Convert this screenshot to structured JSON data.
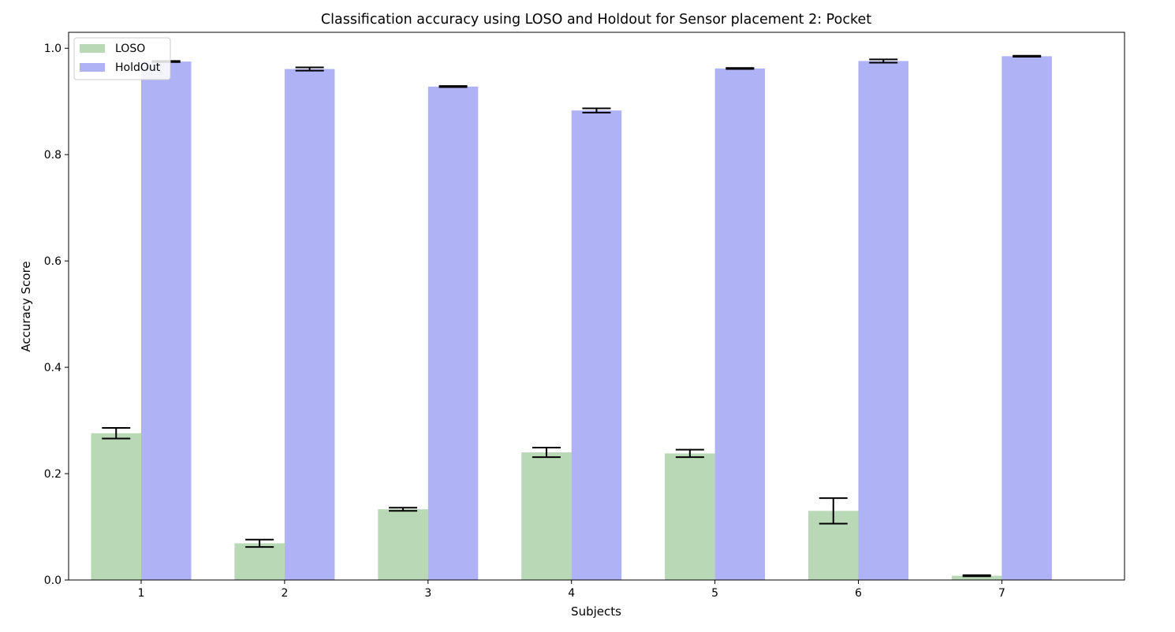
{
  "chart_data": {
    "type": "bar",
    "title": "Classification accuracy using LOSO and Holdout for Sensor placement 2: Pocket",
    "xlabel": "Subjects",
    "ylabel": "Accuracy Score",
    "categories": [
      "1",
      "2",
      "3",
      "4",
      "5",
      "6",
      "7"
    ],
    "ylim": [
      0,
      1.03
    ],
    "yticks": [
      "0.0",
      "0.2",
      "0.4",
      "0.6",
      "0.8",
      "1.0"
    ],
    "grid": false,
    "legend_position": "top-left",
    "series": [
      {
        "name": "LOSO",
        "color": "#b8d8b6",
        "values": [
          0.276,
          0.069,
          0.133,
          0.24,
          0.238,
          0.13,
          0.008
        ],
        "errors": [
          0.01,
          0.007,
          0.003,
          0.009,
          0.007,
          0.024,
          0.001
        ]
      },
      {
        "name": "HoldOut",
        "color": "#b0b2f6",
        "values": [
          0.975,
          0.961,
          0.928,
          0.883,
          0.962,
          0.976,
          0.985
        ],
        "errors": [
          0.001,
          0.003,
          0.001,
          0.004,
          0.001,
          0.003,
          0.001
        ]
      }
    ]
  }
}
